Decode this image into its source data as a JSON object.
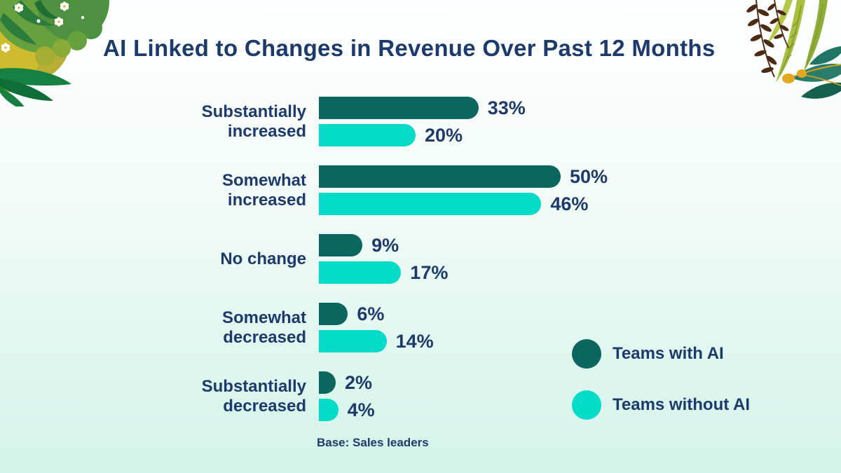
{
  "title": "AI Linked to Changes in Revenue Over Past 12 Months",
  "base_note": "Base: Sales leaders",
  "colors": {
    "dark_teal": "#0a665f",
    "bright_turquoise": "#05dcc7",
    "navy_text": "#1d3a6d",
    "background_top": "#feffff",
    "background_bottom": "#d2f3e9"
  },
  "legend": [
    {
      "label": "Teams with AI",
      "color": "#0a665f"
    },
    {
      "label": "Teams without AI",
      "color": "#05dcc7"
    }
  ],
  "chart_data": {
    "type": "bar",
    "orientation": "horizontal",
    "title": "AI Linked to Changes in Revenue Over Past 12 Months",
    "categories": [
      "Substantially\nincreased",
      "Somewhat\nincreased",
      "No change",
      "Somewhat\ndecreased",
      "Substantially\ndecreased"
    ],
    "series": [
      {
        "name": "Teams with AI",
        "color": "#0a665f",
        "values": [
          33,
          50,
          9,
          6,
          2
        ]
      },
      {
        "name": "Teams without AI",
        "color": "#05dcc7",
        "values": [
          20,
          46,
          17,
          14,
          4
        ]
      }
    ],
    "value_suffix": "%",
    "xlim": [
      0,
      55
    ],
    "grid": false,
    "legend_position": "bottom-right",
    "annotation": "Base: Sales leaders"
  }
}
